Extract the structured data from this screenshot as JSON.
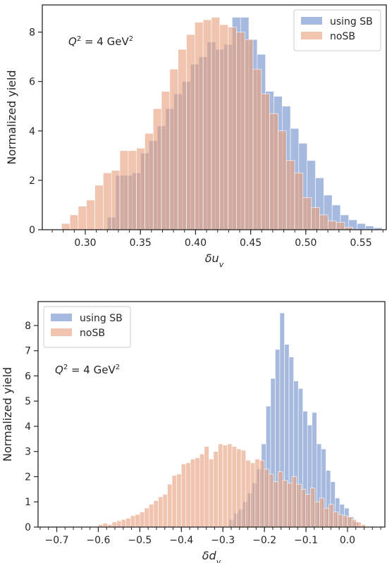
{
  "colors": {
    "using_sb": "#6e8fc9",
    "nosb": "#e8a07e",
    "axis": "#262626",
    "background": "#ffffff"
  },
  "chart_data": [
    {
      "type": "bar",
      "subtype": "histogram",
      "xlabel": "δu_v",
      "xlabel_main": "δu",
      "xlabel_sub": "v",
      "ylabel": "Normalized yield",
      "annotation_prefix": "Q",
      "annotation_sup": "2",
      "annotation_suffix": " = 4 GeV",
      "annotation_suffix_sup": "2",
      "legend_position": "top-right",
      "grid": false,
      "xlim": [
        0.261,
        0.573
      ],
      "ylim": [
        0,
        9.1
      ],
      "xticks": [
        0.3,
        0.35,
        0.4,
        0.45,
        0.5,
        0.55
      ],
      "xtick_labels": [
        "0.30",
        "0.35",
        "0.40",
        "0.45",
        "0.50",
        "0.55"
      ],
      "xminor_step": 0.01,
      "yticks": [
        0,
        2,
        4,
        6,
        8
      ],
      "ytick_labels": [
        "0",
        "2",
        "4",
        "6",
        "8"
      ],
      "series": [
        {
          "name": "using SB",
          "bin_start": 0.32,
          "bin_width": 0.00755,
          "values": [
            0.5,
            2.2,
            2.2,
            2.3,
            3.1,
            3.6,
            4.2,
            4.9,
            5.5,
            6.0,
            6.7,
            7.0,
            7.6,
            7.3,
            7.5,
            8.6,
            8.6,
            7.7,
            7.1,
            5.6,
            5.4,
            5.0,
            4.1,
            3.5,
            2.8,
            2.1,
            1.4,
            1.0,
            0.6,
            0.4,
            0.25,
            0.15,
            0.08
          ]
        },
        {
          "name": "noSB",
          "bin_start": 0.2785,
          "bin_width": 0.00755,
          "values": [
            0.25,
            0.6,
            0.95,
            1.2,
            1.8,
            2.3,
            2.4,
            3.2,
            3.2,
            3.3,
            3.9,
            4.9,
            5.6,
            6.5,
            7.3,
            7.9,
            8.4,
            8.5,
            8.6,
            8.3,
            8.2,
            8.0,
            7.7,
            6.5,
            5.5,
            4.7,
            4.0,
            2.8,
            2.3,
            1.3,
            0.9,
            0.6,
            0.35,
            0.3,
            0.1
          ]
        }
      ]
    },
    {
      "type": "bar",
      "subtype": "histogram",
      "xlabel": "δd_v",
      "xlabel_main": "δd",
      "xlabel_sub": "v",
      "ylabel": "Normalized yield",
      "annotation_prefix": "Q",
      "annotation_sup": "2",
      "annotation_suffix": " = 4 GeV",
      "annotation_suffix_sup": "2",
      "legend_position": "top-left",
      "grid": false,
      "xlim": [
        -0.745,
        0.09
      ],
      "ylim": [
        0,
        8.95
      ],
      "xticks": [
        -0.7,
        -0.6,
        -0.5,
        -0.4,
        -0.3,
        -0.2,
        -0.1,
        0.0
      ],
      "xtick_labels": [
        "−0.7",
        "−0.6",
        "−0.5",
        "−0.4",
        "−0.3",
        "−0.2",
        "−0.1",
        "0.0"
      ],
      "xminor_step": 0.02,
      "yticks": [
        0,
        1,
        2,
        3,
        4,
        5,
        6,
        7,
        8
      ],
      "ytick_labels": [
        "0",
        "1",
        "2",
        "3",
        "4",
        "5",
        "6",
        "7",
        "8"
      ],
      "series": [
        {
          "name": "using SB",
          "bin_start": -0.285,
          "bin_width": 0.0111,
          "values": [
            0.3,
            0.55,
            0.7,
            1.0,
            1.35,
            1.75,
            2.3,
            3.3,
            4.8,
            5.9,
            7.05,
            8.5,
            7.25,
            6.75,
            5.8,
            5.5,
            4.6,
            4.05,
            4.55,
            3.3,
            3.1,
            2.25,
            1.8,
            1.15,
            0.9,
            0.75,
            0.4,
            0.2
          ]
        },
        {
          "name": "noSB",
          "bin_start": -0.6,
          "bin_width": 0.0111,
          "values": [
            0.1,
            0.15,
            0.1,
            0.2,
            0.25,
            0.3,
            0.35,
            0.45,
            0.5,
            0.6,
            0.75,
            0.9,
            1.05,
            1.2,
            1.3,
            1.7,
            2.05,
            2.1,
            2.5,
            2.55,
            2.7,
            2.75,
            2.9,
            3.2,
            2.7,
            3.0,
            3.3,
            3.25,
            3.3,
            3.2,
            3.1,
            3.05,
            2.65,
            2.55,
            2.7,
            2.65,
            2.3,
            2.1,
            1.8,
            2.2,
            1.85,
            1.75,
            2.0,
            1.7,
            1.5,
            1.3,
            1.55,
            1.0,
            1.15,
            0.75,
            0.9,
            0.6,
            0.5,
            0.45,
            0.4,
            0.3,
            0.2,
            0.1
          ]
        }
      ]
    }
  ]
}
